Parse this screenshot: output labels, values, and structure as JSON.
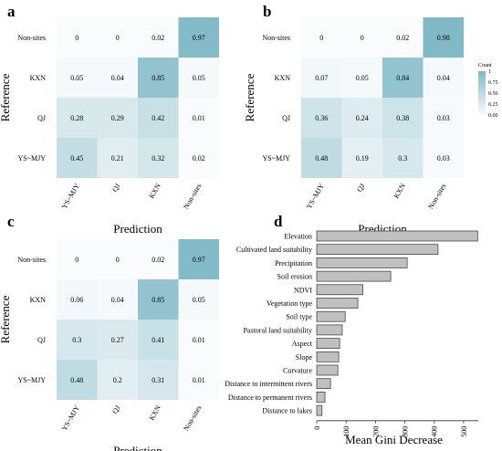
{
  "figure": {
    "panel_letters": [
      "a",
      "b",
      "c",
      "d"
    ]
  },
  "colors": {
    "heatmap_low": "#fbfcfd",
    "heatmap_high": "#7fb9c6",
    "bar_fill": "#c0c0c0",
    "bar_edge": "#333333"
  },
  "chart_data": [
    {
      "type": "heatmap",
      "panel": "a",
      "xlabel": "Prediction",
      "ylabel": "Reference",
      "x_categories": [
        "YS~MJY",
        "QJ",
        "KXN",
        "Non-sites"
      ],
      "y_categories": [
        "Non-sites",
        "KXN",
        "QJ",
        "YS~MJY"
      ],
      "values": [
        [
          0,
          0,
          0.02,
          0.97
        ],
        [
          0.05,
          0.04,
          0.85,
          0.05
        ],
        [
          0.28,
          0.29,
          0.42,
          0.01
        ],
        [
          0.45,
          0.21,
          0.32,
          0.02
        ]
      ],
      "value_labels": [
        [
          "0",
          "0",
          "0.02",
          "0.97"
        ],
        [
          "0.05",
          "0.04",
          "0.85",
          "0.05"
        ],
        [
          "0.28",
          "0.29",
          "0.42",
          "0.01"
        ],
        [
          "0.45",
          "0.21",
          "0.32",
          "0.02"
        ]
      ]
    },
    {
      "type": "heatmap",
      "panel": "b",
      "xlabel": "Prediction",
      "ylabel": "Reference",
      "x_categories": [
        "YS~MJY",
        "QJ",
        "KXN",
        "Non-sites"
      ],
      "y_categories": [
        "Non-sites",
        "KXN",
        "QJ",
        "YS~MJY"
      ],
      "values": [
        [
          0,
          0,
          0.02,
          0.98
        ],
        [
          0.07,
          0.05,
          0.84,
          0.04
        ],
        [
          0.36,
          0.24,
          0.38,
          0.03
        ],
        [
          0.48,
          0.19,
          0.3,
          0.03
        ]
      ],
      "value_labels": [
        [
          "0",
          "0",
          "0.02",
          "0.98"
        ],
        [
          "0.07",
          "0.05",
          "0.84",
          "0.04"
        ],
        [
          "0.36",
          "0.24",
          "0.38",
          "0.03"
        ],
        [
          "0.48",
          "0.19",
          "0.3",
          "0.03"
        ]
      ],
      "legend": {
        "title": "Count",
        "ticks": [
          "1",
          "0.75",
          "0.50",
          "0.25",
          "0.00"
        ],
        "tick_values": [
          1,
          0.75,
          0.5,
          0.25,
          0
        ],
        "placement": "right"
      }
    },
    {
      "type": "heatmap",
      "panel": "c",
      "xlabel": "Prediction",
      "ylabel": "Reference",
      "x_categories": [
        "YS~MJY",
        "QJ",
        "KXN",
        "Non-sites"
      ],
      "y_categories": [
        "Non-sites",
        "KXN",
        "QJ",
        "YS~MJY"
      ],
      "values": [
        [
          0,
          0,
          0.02,
          0.97
        ],
        [
          0.06,
          0.04,
          0.85,
          0.05
        ],
        [
          0.3,
          0.27,
          0.41,
          0.01
        ],
        [
          0.48,
          0.2,
          0.31,
          0.01
        ]
      ],
      "value_labels": [
        [
          "0",
          "0",
          "0.02",
          "0.97"
        ],
        [
          "0.06",
          "0.04",
          "0.85",
          "0.05"
        ],
        [
          "0.3",
          "0.27",
          "0.41",
          "0.01"
        ],
        [
          "0.48",
          "0.2",
          "0.31",
          "0.01"
        ]
      ]
    },
    {
      "type": "bar",
      "orientation": "horizontal",
      "panel": "d",
      "xlabel": "Mean Gini Decrease",
      "categories": [
        "Elevation",
        "Cultivated land suitability",
        "Precipitation",
        "Soil erosion",
        "NDVI",
        "Vegetation type",
        "Soil type",
        "Pastoral land suitability",
        "Aspect",
        "Slope",
        "Curvature",
        "Distance to intermittent rivers",
        "Distance to permanent rivers",
        "Distance to lakes"
      ],
      "values": [
        548,
        413,
        308,
        252,
        157,
        140,
        97,
        87,
        78,
        75,
        72,
        47,
        28,
        18
      ],
      "xlim": [
        0,
        550
      ],
      "xticks": [
        "0",
        "100",
        "200",
        "300",
        "400",
        "500"
      ],
      "xtick_values": [
        0,
        100,
        200,
        300,
        400,
        500
      ],
      "grid": false
    }
  ]
}
